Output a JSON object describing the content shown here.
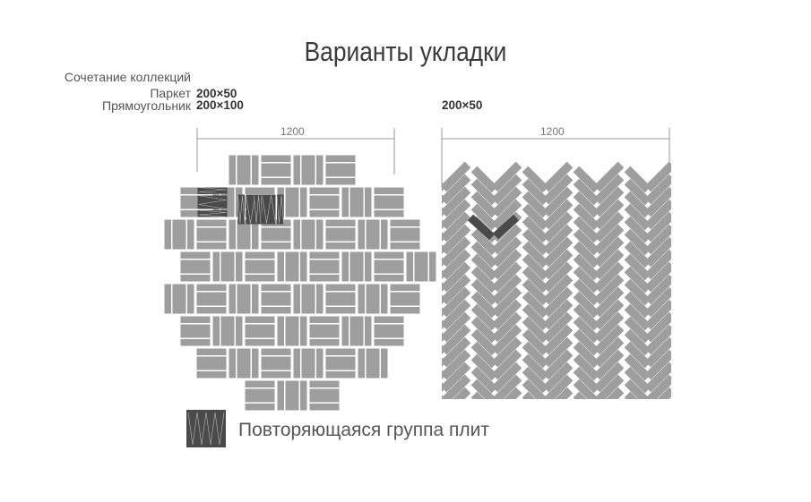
{
  "title": "Варианты укладки",
  "left_labels": {
    "combination": "Сочетание коллекций",
    "parquet": "Паркет",
    "rectangle": "Прямоугольник"
  },
  "left_sizes": {
    "parquet": "200×50",
    "rectangle": "200×100"
  },
  "right_size": "200×50",
  "dimensions": {
    "left": "1200",
    "right": "1200"
  },
  "legend": {
    "label": "Повторяющаяся группа плит"
  },
  "colors": {
    "tile": "#9e9e9e",
    "highlight": "#4a4a4a",
    "dimension_line": "#999999"
  }
}
